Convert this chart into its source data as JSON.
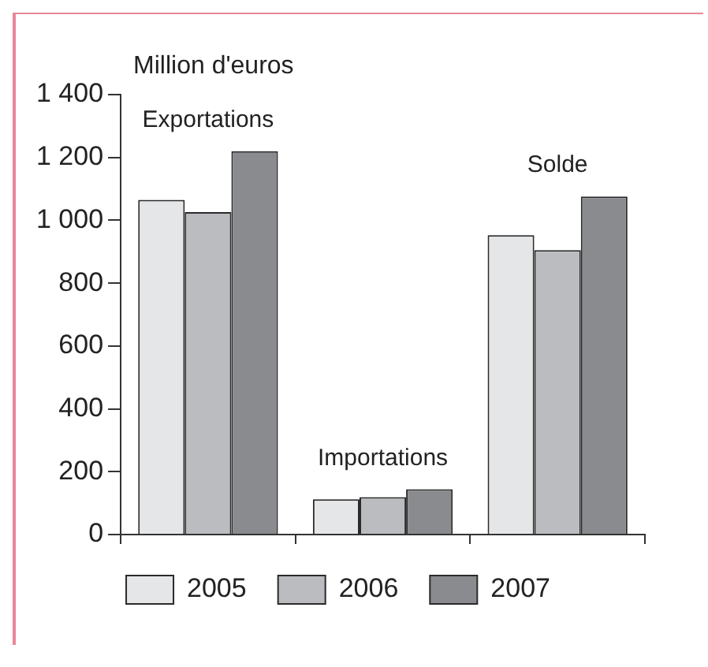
{
  "chart_data": {
    "type": "bar",
    "ylabel": "Million d'euros",
    "categories": [
      "Exportations",
      "Importations",
      "Solde"
    ],
    "series": [
      {
        "name": "2005",
        "color": "#e5e6e8",
        "values": [
          1065,
          112,
          953
        ]
      },
      {
        "name": "2006",
        "color": "#bbbcc0",
        "values": [
          1026,
          119,
          905
        ]
      },
      {
        "name": "2007",
        "color": "#8a8b8f",
        "values": [
          1220,
          144,
          1076
        ]
      }
    ],
    "ylim": [
      0,
      1400
    ],
    "yticks": [
      0,
      200,
      400,
      600,
      800,
      {
        "value": 1000,
        "label": "1 000"
      },
      {
        "value": 1200,
        "label": "1 200"
      },
      {
        "value": 1400,
        "label": "1 400"
      }
    ],
    "grid": false,
    "legend": "bottom"
  }
}
